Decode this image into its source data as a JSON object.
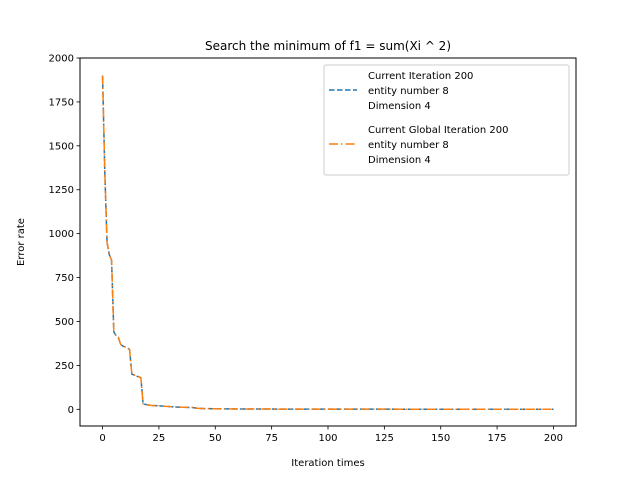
{
  "chart_data": {
    "type": "line",
    "title": "Search the minimum of f1 = sum(Xi ^ 2)",
    "xlabel": "Iteration times",
    "ylabel": "Error rate",
    "xlim": [
      -10,
      210
    ],
    "ylim": [
      -95,
      2000
    ],
    "xticks": [
      0,
      25,
      50,
      75,
      100,
      125,
      150,
      175,
      200
    ],
    "yticks": [
      0,
      250,
      500,
      750,
      1000,
      1250,
      1500,
      1750,
      2000
    ],
    "grid": false,
    "legend_position": "top-right",
    "colors": {
      "series1": "#1f77b4",
      "series2": "#ff7f0e"
    },
    "series": [
      {
        "name": "Current Iteration 200\nentity number 8\nDimension 4",
        "legend_lines": [
          "Current Iteration 200",
          "entity number 8",
          "Dimension 4"
        ],
        "style": "dashed",
        "x": [
          0,
          1,
          2,
          3,
          4,
          5,
          6,
          7,
          8,
          9,
          10,
          11,
          12,
          13,
          14,
          15,
          16,
          17,
          18,
          19,
          20,
          22,
          25,
          30,
          35,
          40,
          42,
          45,
          50,
          60,
          70,
          80,
          100,
          150,
          200
        ],
        "values": [
          1900,
          1350,
          950,
          880,
          850,
          440,
          420,
          410,
          370,
          360,
          355,
          350,
          340,
          200,
          195,
          190,
          185,
          180,
          30,
          28,
          25,
          22,
          20,
          15,
          12,
          10,
          6,
          4,
          3,
          2,
          2,
          1,
          1,
          0.5,
          0.5
        ]
      },
      {
        "name": "Current Global Iteration 200\nentity number 8\nDimension 4",
        "legend_lines": [
          "Current Global Iteration 200",
          "entity number 8",
          "Dimension 4"
        ],
        "style": "dashdot",
        "x": [
          0,
          1,
          2,
          3,
          4,
          5,
          6,
          7,
          8,
          9,
          10,
          11,
          12,
          13,
          14,
          15,
          16,
          17,
          18,
          19,
          20,
          22,
          25,
          30,
          35,
          40,
          42,
          45,
          50,
          60,
          70,
          80,
          100,
          150,
          200
        ],
        "values": [
          1900,
          1350,
          950,
          880,
          850,
          440,
          420,
          410,
          370,
          360,
          355,
          350,
          340,
          200,
          195,
          190,
          185,
          180,
          30,
          28,
          25,
          22,
          20,
          15,
          12,
          10,
          6,
          4,
          3,
          2,
          2,
          1,
          1,
          0.5,
          0.5
        ]
      }
    ]
  }
}
